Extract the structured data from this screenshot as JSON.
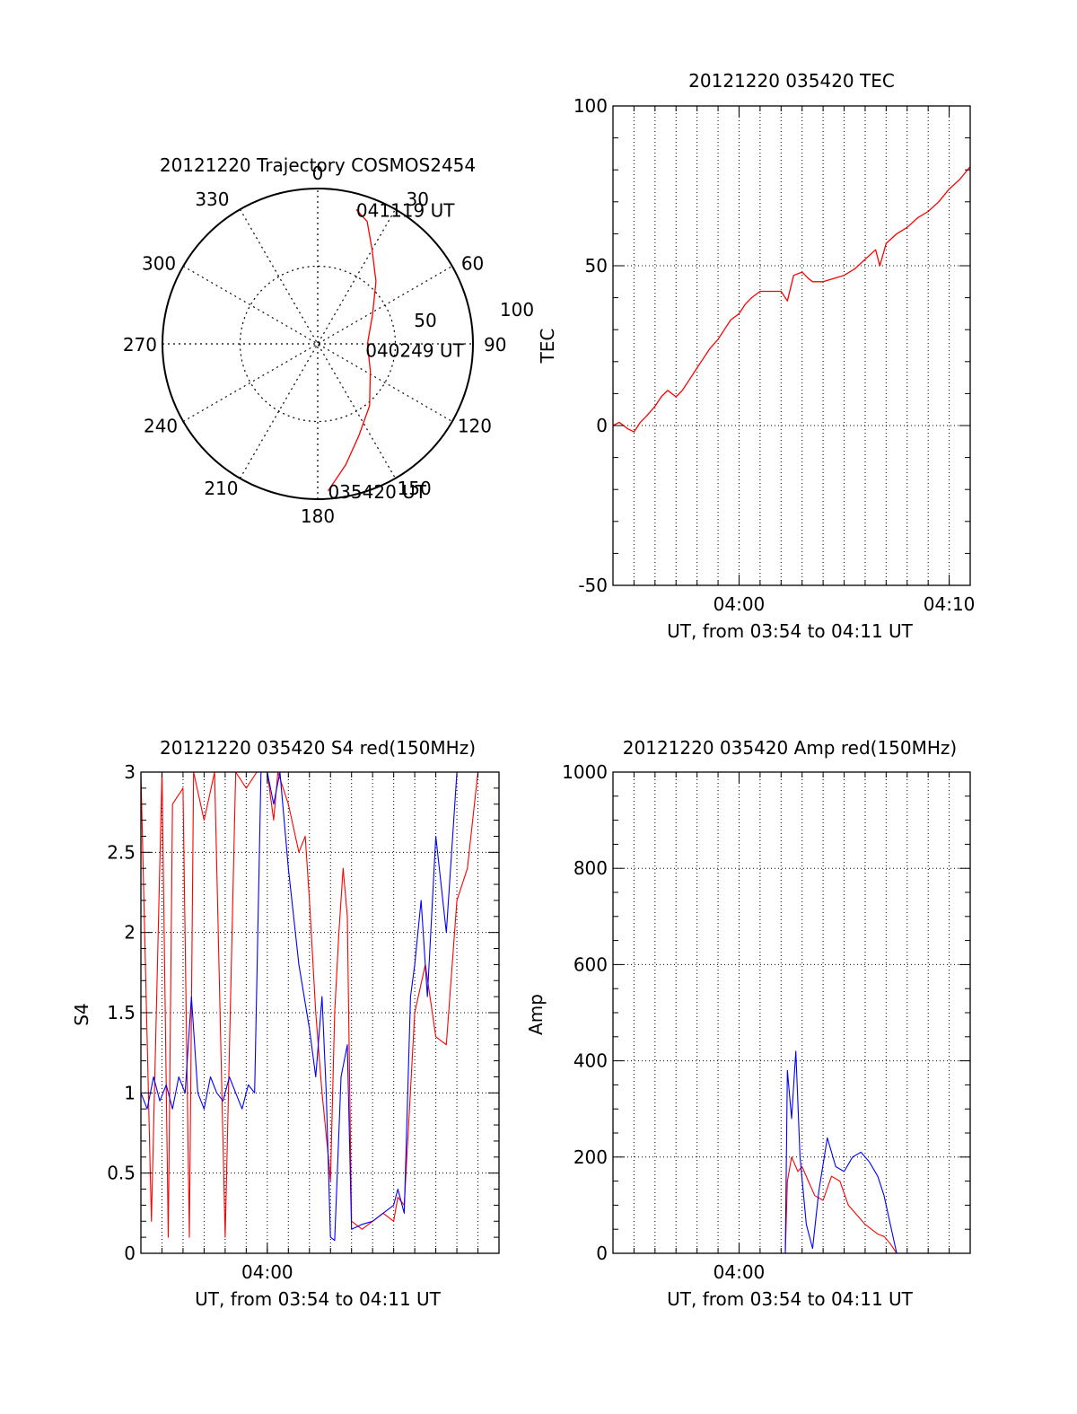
{
  "colors": {
    "primary": "#ff0000",
    "secondary": "#0000ff",
    "axis": "#000000"
  },
  "chart_data": [
    {
      "id": "trajectory",
      "type": "polar",
      "title": "20121220 Trajectory COSMOS2454",
      "angle_labels": [
        "0",
        "30",
        "60",
        "90",
        "120",
        "150",
        "180",
        "210",
        "240",
        "270",
        "300",
        "330"
      ],
      "radial_labels": [
        "50",
        "100"
      ],
      "annotations": [
        {
          "text": "041119 UT",
          "azimuth": 16,
          "radius": 0.9
        },
        {
          "text": "040249 UT",
          "azimuth": 97,
          "radius": 0.31
        },
        {
          "text": "035420 UT",
          "azimuth": 176,
          "radius": 0.95
        }
      ],
      "series": [
        {
          "color": "#ff0000",
          "points": [
            [
              176,
              95
            ],
            [
              167,
              80
            ],
            [
              156,
              65
            ],
            [
              140,
              52
            ],
            [
              117,
              38
            ],
            [
              90,
              32
            ],
            [
              62,
              40
            ],
            [
              43,
              55
            ],
            [
              30,
              70
            ],
            [
              22,
              85
            ],
            [
              16,
              90
            ]
          ]
        }
      ]
    },
    {
      "id": "tec",
      "type": "line",
      "title": "20121220 035420 TEC",
      "ylabel": "TEC",
      "xlabel": "UT, from 03:54 to 04:11 UT",
      "xlim": [
        0,
        17
      ],
      "ylim": [
        -50,
        100
      ],
      "yticks": [
        -50,
        0,
        50,
        100
      ],
      "xticks": [
        {
          "at": 6,
          "label": "04:00"
        },
        {
          "at": 16,
          "label": "04:10"
        }
      ],
      "series": [
        {
          "color": "#ff0000",
          "x": [
            0,
            0.3,
            0.7,
            1.0,
            1.3,
            1.6,
            2.0,
            2.3,
            2.6,
            3.0,
            3.3,
            3.6,
            4.0,
            4.3,
            4.6,
            5.0,
            5.3,
            5.6,
            6.0,
            6.3,
            6.6,
            7.0,
            7.3,
            7.6,
            8.0,
            8.3,
            8.6,
            9.0,
            9.3,
            9.5,
            9.8,
            10.0,
            10.5,
            11.0,
            11.5,
            12.0,
            12.5,
            12.7,
            13.0,
            13.5,
            14.0,
            14.5,
            15.0,
            15.5,
            16.0,
            16.5,
            17.0
          ],
          "values": [
            0,
            1,
            -1,
            -2,
            1,
            3,
            6,
            9,
            11,
            9,
            11,
            14,
            18,
            21,
            24,
            27,
            30,
            33,
            35,
            38,
            40,
            42,
            42,
            42,
            42,
            39,
            47,
            48,
            46,
            45,
            45,
            45,
            46,
            47,
            49,
            52,
            55,
            50,
            57,
            60,
            62,
            65,
            67,
            70,
            74,
            77,
            81
          ]
        }
      ]
    },
    {
      "id": "s4",
      "type": "line",
      "title": "20121220 035420 S4 red(150MHz)",
      "ylabel": "S4",
      "xlabel": "UT, from 03:54 to 04:11 UT",
      "xlim": [
        0,
        17
      ],
      "ylim": [
        0,
        3
      ],
      "yticks": [
        0,
        0.5,
        1,
        1.5,
        2,
        2.5,
        3
      ],
      "ytick_labels": [
        "0",
        "0.5",
        "1",
        "1.5",
        "2",
        "2.5",
        "3"
      ],
      "xticks": [
        {
          "at": 6,
          "label": "04:00"
        }
      ],
      "series": [
        {
          "color": "#ff0000",
          "x": [
            0,
            0.5,
            1.0,
            1.3,
            1.5,
            2.0,
            2.3,
            2.5,
            3.0,
            3.5,
            4.0,
            4.5,
            5.0,
            5.5,
            6.0,
            6.3,
            6.5,
            7.0,
            7.5,
            7.8,
            8.0,
            8.3,
            8.6,
            8.9,
            9.0,
            9.2,
            9.4,
            9.6,
            9.8,
            10.0,
            10.5,
            11.0,
            11.5,
            12.0,
            12.2,
            12.5,
            13.0,
            13.5,
            14.0,
            14.5,
            15.0,
            15.5,
            16.0,
            16.5,
            17.0
          ],
          "values": [
            3,
            0.2,
            3,
            0.1,
            2.8,
            2.9,
            0.1,
            3,
            2.7,
            3,
            0.1,
            3,
            2.9,
            3,
            3,
            2.7,
            3,
            2.8,
            2.5,
            2.6,
            2.2,
            1.5,
            1.0,
            0.6,
            0.45,
            1.5,
            2.0,
            2.4,
            2.1,
            0.2,
            0.15,
            0.2,
            0.25,
            0.2,
            0.35,
            0.3,
            1.5,
            1.8,
            1.35,
            1.3,
            2.2,
            2.4,
            3,
            3,
            3
          ]
        },
        {
          "color": "#0000ff",
          "x": [
            0,
            0.3,
            0.6,
            0.9,
            1.2,
            1.5,
            1.8,
            2.1,
            2.4,
            2.7,
            3.0,
            3.3,
            3.6,
            3.9,
            4.2,
            4.5,
            4.8,
            5.1,
            5.4,
            5.7,
            6.0,
            6.3,
            6.6,
            7.0,
            7.5,
            8.0,
            8.3,
            8.6,
            8.8,
            9.0,
            9.2,
            9.5,
            9.8,
            10.0,
            10.5,
            11.0,
            11.5,
            12.0,
            12.2,
            12.5,
            12.8,
            13.0,
            13.3,
            13.6,
            14.0,
            14.5,
            15.0,
            15.5,
            16.0,
            16.5,
            17.0
          ],
          "values": [
            1.0,
            0.9,
            1.1,
            0.95,
            1.05,
            0.9,
            1.1,
            1.0,
            1.6,
            1.0,
            0.9,
            1.1,
            1.0,
            0.95,
            1.1,
            1.0,
            0.9,
            1.05,
            1.0,
            3,
            3,
            2.8,
            3,
            2.4,
            1.8,
            1.4,
            1.1,
            1.6,
            1.0,
            0.1,
            0.08,
            1.1,
            1.3,
            0.15,
            0.18,
            0.2,
            0.25,
            0.3,
            0.4,
            0.25,
            1.6,
            1.8,
            2.2,
            1.6,
            2.6,
            2.0,
            3,
            3,
            3,
            3,
            3
          ]
        }
      ]
    },
    {
      "id": "amp",
      "type": "line",
      "title": "20121220 035420 Amp red(150MHz)",
      "ylabel": "Amp",
      "xlabel": "UT, from 03:54 to 04:11 UT",
      "xlim": [
        0,
        17
      ],
      "ylim": [
        0,
        1000
      ],
      "yticks": [
        0,
        200,
        400,
        600,
        800,
        1000
      ],
      "xticks": [
        {
          "at": 6,
          "label": "04:00"
        }
      ],
      "series": [
        {
          "color": "#ff0000",
          "x": [
            0,
            8.0,
            8.2,
            8.3,
            8.5,
            8.8,
            9.0,
            9.3,
            9.6,
            10.0,
            10.4,
            10.8,
            11.2,
            11.6,
            12.0,
            12.3,
            12.6,
            12.9,
            13.2,
            13.5,
            17.0
          ],
          "values": [
            0,
            0,
            0,
            150,
            200,
            170,
            180,
            150,
            120,
            110,
            160,
            150,
            100,
            80,
            60,
            50,
            40,
            35,
            20,
            0,
            0
          ]
        },
        {
          "color": "#0000ff",
          "x": [
            0,
            8.0,
            8.2,
            8.3,
            8.5,
            8.7,
            8.9,
            9.2,
            9.5,
            9.8,
            10.2,
            10.6,
            11.0,
            11.4,
            11.8,
            12.2,
            12.6,
            12.9,
            13.2,
            13.5,
            17.0
          ],
          "values": [
            0,
            0,
            0,
            380,
            280,
            420,
            200,
            60,
            10,
            130,
            240,
            180,
            170,
            200,
            210,
            190,
            160,
            120,
            60,
            0,
            0
          ]
        }
      ]
    }
  ]
}
